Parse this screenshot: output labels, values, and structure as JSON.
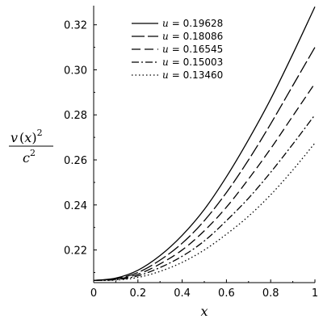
{
  "chart_data": {
    "type": "line",
    "title": "",
    "xlabel": "x",
    "ylabel": {
      "numerator_func": "v",
      "numerator_open": "(",
      "numerator_arg": "x",
      "numerator_close": ")",
      "numerator_exp": "2",
      "denominator_base": "c",
      "denominator_exp": "2"
    },
    "xlim": [
      0,
      1
    ],
    "ylim": [
      0.2055,
      0.3285
    ],
    "grid": false,
    "legend_position": "top-center",
    "xticks": [
      {
        "value": 0,
        "label": "0"
      },
      {
        "value": 0.2,
        "label": "0.2"
      },
      {
        "value": 0.4,
        "label": "0.4"
      },
      {
        "value": 0.6,
        "label": "0.6"
      },
      {
        "value": 0.8,
        "label": "0.8"
      },
      {
        "value": 1,
        "label": "1"
      }
    ],
    "yticks": [
      {
        "value": 0.22,
        "label": "0.22"
      },
      {
        "value": 0.24,
        "label": "0.24"
      },
      {
        "value": 0.26,
        "label": "0.26"
      },
      {
        "value": 0.28,
        "label": "0.28"
      },
      {
        "value": 0.3,
        "label": "0.30"
      },
      {
        "value": 0.32,
        "label": "0.32"
      }
    ],
    "x": [
      0,
      0.1,
      0.2,
      0.3,
      0.4,
      0.5,
      0.6,
      0.7,
      0.8,
      0.9,
      1.0
    ],
    "series": [
      {
        "name": "u = 0.19628",
        "legend_var": "u",
        "legend_value": "= 0.19628",
        "dash": "solid",
        "values": [
          0.2065,
          0.2075,
          0.211,
          0.2175,
          0.2265,
          0.238,
          0.2525,
          0.269,
          0.287,
          0.307,
          0.328
        ]
      },
      {
        "name": "u = 0.18086",
        "legend_var": "u",
        "legend_value": "= 0.18086",
        "dash": "longdash",
        "values": [
          0.2065,
          0.2072,
          0.21,
          0.2155,
          0.223,
          0.233,
          0.2455,
          0.26,
          0.276,
          0.293,
          0.31
        ]
      },
      {
        "name": "u = 0.16545",
        "legend_var": "u",
        "legend_value": "= 0.16545",
        "dash": "dash",
        "values": [
          0.2065,
          0.207,
          0.2092,
          0.2138,
          0.22,
          0.2285,
          0.239,
          0.2515,
          0.265,
          0.2795,
          0.294
        ]
      },
      {
        "name": "u = 0.15003",
        "legend_var": "u",
        "legend_value": "= 0.15003",
        "dash": "dashdot",
        "values": [
          0.2065,
          0.2068,
          0.2085,
          0.2122,
          0.2172,
          0.224,
          0.233,
          0.243,
          0.2545,
          0.267,
          0.28
        ]
      },
      {
        "name": "u = 0.13460",
        "legend_var": "u",
        "legend_value": "= 0.13460",
        "dash": "dot",
        "values": [
          0.2065,
          0.2066,
          0.2078,
          0.2105,
          0.2145,
          0.22,
          0.227,
          0.235,
          0.2445,
          0.2555,
          0.2675
        ]
      }
    ]
  }
}
